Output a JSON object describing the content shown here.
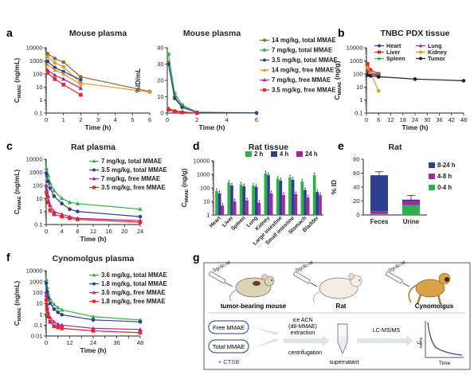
{
  "colors": {
    "black": "#222222",
    "green": "#2db24a",
    "navy": "#2e3f8f",
    "purple": "#a12aa0",
    "red": "#e8242c",
    "orange": "#e9951f",
    "olive": "#8a6a2a",
    "gray": "#555555",
    "blue": "#3a60c9"
  },
  "panel_letters": {
    "a": "a",
    "b": "b",
    "c": "c",
    "d": "d",
    "e": "e",
    "f": "f",
    "g": "g"
  },
  "chart_data": [
    {
      "id": "a1",
      "type": "line",
      "title": "Mouse plasma",
      "xlabel": "Time (h)",
      "ylabel": "C",
      "ylabel_sub": "MMAE",
      "ylabel_unit": "(ng/mL)",
      "log_y": true,
      "xlim": [
        0,
        6
      ],
      "ylim": [
        0.1,
        10000
      ],
      "xticks": [
        0,
        1,
        2,
        3,
        4,
        5,
        6
      ],
      "yticks": [
        0.1,
        1,
        10,
        100,
        1000,
        10000
      ],
      "yticklabels": [
        "0.1",
        "1",
        "10",
        "100",
        "1000",
        "10000"
      ],
      "series": [
        {
          "name": "14 mg/kg, total MMAE",
          "color": "olive",
          "marker": "circle",
          "x": [
            0.083,
            0.5,
            1,
            2,
            6
          ],
          "y": [
            3500,
            1500,
            800,
            60,
            4.5
          ]
        },
        {
          "name": "7 mg/kg, total MMAE",
          "color": "orange",
          "marker": "circle",
          "x": [
            0.083,
            0.5,
            1,
            2,
            6
          ],
          "y": [
            2000,
            700,
            350,
            20,
            4
          ]
        },
        {
          "name": "3.5 mg/kg, total MMAE",
          "color": "navy",
          "marker": "circle",
          "x": [
            0.083,
            0.5,
            1,
            2
          ],
          "y": [
            900,
            300,
            150,
            35
          ]
        },
        {
          "name": "14 mg/kg, free MMAE",
          "color": "orange",
          "marker": "triangle",
          "x": [
            0.083,
            0.5,
            1,
            2
          ],
          "y": [
            500,
            200,
            100,
            15
          ]
        },
        {
          "name": "7 mg/kg, free MMAE",
          "color": "purple",
          "marker": "triangle",
          "x": [
            0.083,
            0.5,
            1,
            2
          ],
          "y": [
            200,
            80,
            40,
            8
          ]
        },
        {
          "name": "3.5 mg/kg, free MMAE",
          "color": "red",
          "marker": "square",
          "x": [
            0.083,
            0.5,
            1,
            2
          ],
          "y": [
            120,
            40,
            15,
            2.5
          ]
        }
      ]
    },
    {
      "id": "a2",
      "type": "line",
      "title": "Mouse plasma",
      "xlabel": "Time (h)",
      "ylabel": "%ID/mL",
      "log_y": false,
      "xlim": [
        0,
        6
      ],
      "ylim": [
        0,
        40
      ],
      "xticks": [
        0,
        2,
        4,
        6
      ],
      "yticks": [
        0,
        10,
        20,
        30,
        40
      ],
      "legend_position": "right",
      "series": [
        {
          "name": "14 mg/kg, total MMAE",
          "color": "olive",
          "marker": "circle",
          "x": [
            0.083,
            0.5,
            1,
            2,
            6
          ],
          "y": [
            31,
            10,
            4,
            0.3,
            0.1
          ]
        },
        {
          "name": "7 mg/kg, total MMAE",
          "color": "green",
          "marker": "circle",
          "x": [
            0.083,
            0.5,
            1,
            2,
            6
          ],
          "y": [
            36,
            12,
            5,
            0.5,
            0.1
          ]
        },
        {
          "name": "3.5 mg/kg, total MMAE",
          "color": "navy",
          "marker": "circle",
          "x": [
            0.083,
            0.5,
            1,
            2,
            6
          ],
          "y": [
            30,
            9,
            3.5,
            0.4,
            0.1
          ]
        },
        {
          "name": "14 mg/kg, free MMAE",
          "color": "orange",
          "marker": "triangle",
          "x": [
            0.083,
            0.5,
            1,
            2
          ],
          "y": [
            3,
            1.5,
            0.8,
            0.1
          ]
        },
        {
          "name": "7 mg/kg, free MMAE",
          "color": "purple",
          "marker": "triangle",
          "x": [
            0.083,
            0.5,
            1,
            2
          ],
          "y": [
            2.5,
            1.2,
            0.6,
            0.1
          ]
        },
        {
          "name": "3.5 mg/kg, free MMAE",
          "color": "red",
          "marker": "square",
          "x": [
            0.083,
            0.5,
            1,
            2
          ],
          "y": [
            2,
            1,
            0.4,
            0.1
          ]
        }
      ]
    },
    {
      "id": "b",
      "type": "line",
      "title": "TNBC PDX tissue",
      "xlabel": "Time (h)",
      "ylabel": "C",
      "ylabel_sub": "MMAE",
      "ylabel_unit": "(ng/g)",
      "log_y": true,
      "xlim": [
        0,
        48
      ],
      "ylim": [
        0.1,
        10000
      ],
      "xticks": [
        0,
        6,
        12,
        18,
        24,
        30,
        36,
        42,
        48
      ],
      "yticks": [
        0.1,
        1,
        10,
        100,
        1000,
        10000
      ],
      "yticklabels": [
        "0.1",
        "1",
        "10",
        "100",
        "1000",
        "10000"
      ],
      "legend_position": "top",
      "series": [
        {
          "name": "Heart",
          "color": "navy",
          "marker": "circle",
          "x": [
            0.5,
            2,
            6
          ],
          "y": [
            150,
            100,
            80
          ]
        },
        {
          "name": "Liver",
          "color": "red",
          "marker": "square",
          "x": [
            0.5,
            2,
            6
          ],
          "y": [
            600,
            200,
            100
          ]
        },
        {
          "name": "Spleen",
          "color": "green",
          "marker": "triangle",
          "x": [
            0.5,
            2,
            6
          ],
          "y": [
            200,
            120,
            90
          ]
        },
        {
          "name": "Lung",
          "color": "purple",
          "marker": "triangle",
          "x": [
            0.5,
            2,
            6
          ],
          "y": [
            180,
            100,
            70
          ]
        },
        {
          "name": "Kidney",
          "color": "orange",
          "marker": "circle",
          "x": [
            0.5,
            2,
            6
          ],
          "y": [
            300,
            120,
            5
          ]
        },
        {
          "name": "Tumor",
          "color": "black",
          "marker": "circle",
          "x": [
            0.5,
            2,
            6,
            24,
            48
          ],
          "y": [
            80,
            70,
            60,
            40,
            30
          ]
        }
      ]
    },
    {
      "id": "c",
      "type": "line",
      "title": "Rat plasma",
      "xlabel": "Time (h)",
      "ylabel": "C",
      "ylabel_sub": "MMAE",
      "ylabel_unit": "(ng/mL)",
      "log_y": true,
      "xlim": [
        0,
        24
      ],
      "ylim": [
        0.1,
        10000
      ],
      "xticks": [
        0,
        4,
        8,
        12,
        16,
        20,
        24
      ],
      "yticks": [
        0.1,
        1,
        10,
        100,
        1000,
        10000
      ],
      "yticklabels": [
        "0.1",
        "1",
        "10",
        "100",
        "1000",
        "10000"
      ],
      "series": [
        {
          "name": "7 mg/kg, total MMAE",
          "color": "green",
          "marker": "triangle",
          "x": [
            0.083,
            0.5,
            1,
            2,
            4,
            6,
            8,
            24
          ],
          "y": [
            2000,
            600,
            150,
            40,
            10,
            5,
            4,
            1.5
          ]
        },
        {
          "name": "3.5 mg/kg, total MMAE",
          "color": "navy",
          "marker": "circle",
          "x": [
            0.083,
            0.5,
            1,
            2,
            4,
            6,
            8,
            24
          ],
          "y": [
            800,
            200,
            60,
            15,
            4,
            1.5,
            1,
            0.4
          ]
        },
        {
          "name": "7 mg/kg, free MMAE",
          "color": "purple",
          "marker": "triangle",
          "x": [
            0.083,
            0.5,
            1,
            2,
            4,
            6,
            8,
            24
          ],
          "y": [
            100,
            15,
            3,
            1,
            0.6,
            0.4,
            0.3,
            0.2
          ]
        },
        {
          "name": "3.5 mg/kg, free MMAE",
          "color": "red",
          "marker": "square",
          "x": [
            0.083,
            0.5,
            1,
            2,
            4,
            6,
            8,
            24
          ],
          "y": [
            30,
            5,
            1.2,
            0.6,
            0.4,
            0.3,
            0.25,
            0.15
          ]
        }
      ]
    },
    {
      "id": "d",
      "type": "bar",
      "title": "Rat tissue",
      "ylabel": "C",
      "ylabel_sub": "MMAE",
      "ylabel_unit": "(ng/g)",
      "log_y": true,
      "ylim": [
        1,
        10000
      ],
      "yticks": [
        1,
        10,
        100,
        1000,
        10000
      ],
      "yticklabels": [
        "1",
        "10",
        "100",
        "1000",
        "10000"
      ],
      "legend_position": "top",
      "categories": [
        "Heart",
        "Liver",
        "Spleen",
        "Lung",
        "Kidney",
        "Large intestine",
        "Small intestine",
        "Stomach",
        "Bladder"
      ],
      "series": [
        {
          "name": "2 h",
          "color": "green",
          "values": [
            60,
            250,
            180,
            150,
            1200,
            500,
            600,
            300,
            900
          ]
        },
        {
          "name": "4 h",
          "color": "navy",
          "values": [
            40,
            150,
            130,
            120,
            900,
            350,
            400,
            70,
            50
          ]
        },
        {
          "name": "24 h",
          "color": "purple",
          "values": [
            5,
            10,
            12,
            8,
            40,
            30,
            35,
            20,
            30
          ]
        }
      ]
    },
    {
      "id": "e",
      "type": "bar",
      "title": "Rat",
      "ylabel": "% ID",
      "log_y": false,
      "ylim": [
        0,
        80
      ],
      "yticks": [
        0,
        20,
        40,
        60,
        80
      ],
      "stacked": true,
      "categories": [
        "Feces",
        "Urine"
      ],
      "legend_position": "right",
      "series": [
        {
          "name": "0-4 h",
          "color": "green",
          "values": [
            1.5,
            14
          ]
        },
        {
          "name": "4-8 h",
          "color": "purple",
          "values": [
            4,
            6
          ]
        },
        {
          "name": "8-24 h",
          "color": "navy",
          "values": [
            51.5,
            2
          ]
        }
      ],
      "errors": [
        5,
        6
      ]
    },
    {
      "id": "f",
      "type": "line",
      "title": "Cynomolgus plasma",
      "xlabel": "Time (h)",
      "ylabel": "C",
      "ylabel_sub": "MMAE",
      "ylabel_unit": "(ng/mL)",
      "log_y": true,
      "xlim": [
        0,
        48
      ],
      "ylim": [
        0.01,
        10000
      ],
      "xticks": [
        0,
        6,
        12,
        18,
        24,
        30,
        36,
        42,
        48
      ],
      "xticklabels": [
        "0",
        "",
        "12",
        "",
        "24",
        "",
        "36",
        "",
        "48"
      ],
      "yticks": [
        0.01,
        0.1,
        1,
        10,
        100,
        1000,
        10000
      ],
      "yticklabels": [
        "0.01",
        "0.1",
        "1",
        "10",
        "100",
        "1000",
        "10000"
      ],
      "series": [
        {
          "name": "3.6 mg/kg, total MMAE",
          "color": "green",
          "marker": "triangle",
          "x": [
            0.083,
            0.5,
            1,
            2,
            4,
            6,
            8,
            24,
            48
          ],
          "y": [
            1500,
            300,
            80,
            25,
            8,
            4,
            2.5,
            0.6,
            0.3
          ]
        },
        {
          "name": "1.8 mg/kg, total MMAE",
          "color": "navy",
          "marker": "circle",
          "x": [
            0.083,
            0.5,
            1,
            2,
            4,
            6,
            8,
            24,
            48
          ],
          "y": [
            700,
            120,
            35,
            10,
            3,
            1.5,
            0.9,
            0.3,
            0.2
          ]
        },
        {
          "name": "3.6 mg/kg, free MMAE",
          "color": "purple",
          "marker": "triangle",
          "x": [
            0.083,
            0.5,
            1,
            2,
            4,
            6,
            8,
            24,
            48
          ],
          "y": [
            60,
            8,
            1.5,
            0.5,
            0.2,
            0.12,
            0.1,
            0.05,
            0.04
          ]
        },
        {
          "name": "1.8 mg/kg, free MMAE",
          "color": "red",
          "marker": "square",
          "x": [
            0.083,
            0.5,
            1,
            2,
            4,
            6,
            8,
            24,
            48
          ],
          "y": [
            20,
            3,
            0.6,
            0.2,
            0.08,
            0.06,
            0.05,
            0.03,
            0.02
          ]
        }
      ]
    }
  ],
  "schematic": {
    "species": [
      "tumor-bearing mouse",
      "Rat",
      "Cynomolgus"
    ],
    "probe_labels": [
      "Sgc8c-M",
      "Sgc8c-M",
      "Sgc8c-M"
    ],
    "boxes": [
      "Free MMAE",
      "Total MMAE"
    ],
    "plus_ctsb": "+ CTSB",
    "extraction": [
      "ice ACN",
      "(d8-MMAE)",
      "extraction"
    ],
    "centrifugation": "centrifugation",
    "supernatant": "supernatant",
    "lcms": "LC-MS/MS",
    "mini_ylabel": "C",
    "mini_ylabel_sub": "MMAE",
    "mini_xlabel": "Time"
  }
}
